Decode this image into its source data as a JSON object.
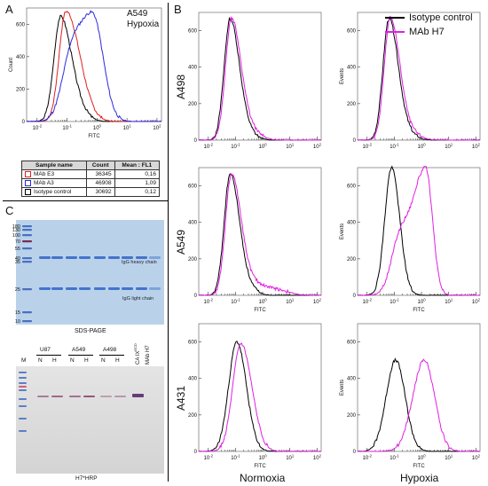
{
  "panel_a": {
    "letter": "A",
    "title_line1": "A549",
    "title_line2": "Hypoxia",
    "ylabel": "Count",
    "xlabel": "FITC",
    "yticks": [
      "0",
      "200",
      "400",
      "600"
    ],
    "table": {
      "headers": [
        "Sample name",
        "Count",
        "Mean : FL1"
      ],
      "rows": [
        {
          "name": "MAb E3",
          "count": "36345",
          "mean": "0,16",
          "color": "#e02020"
        },
        {
          "name": "MAb A3",
          "count": "46908",
          "mean": "1,09",
          "color": "#2a2adf"
        },
        {
          "name": "Isotype control",
          "count": "30692",
          "mean": "0,12",
          "color": "#000000"
        }
      ]
    }
  },
  "panel_b": {
    "letter": "B",
    "legend": [
      {
        "label": "Isotype control",
        "color": "#000000"
      },
      {
        "label": "MAb H7",
        "color": "#e020e0"
      }
    ],
    "row_labels": [
      "A498",
      "A549",
      "A431"
    ],
    "col_labels": [
      "Normoxia",
      "Hypoxia"
    ],
    "ylabel_right": "Events",
    "xlabel": "FITC",
    "yticks": [
      "0",
      "200",
      "400",
      "600"
    ]
  },
  "axis": {
    "xticks": [
      "10^-2",
      "10^-1",
      "10^0",
      "10^1",
      "10^2"
    ]
  },
  "panel_c": {
    "letter": "C",
    "sds_mw_markers": [
      "180",
      "130",
      "100",
      "70",
      "55",
      "40",
      "35",
      "25",
      "15",
      "10"
    ],
    "heavy_chain_label": "IgG heavy chain",
    "light_chain_label": "IgG light chain",
    "sds_caption": "SDS-PAGE",
    "wb_lane_M": "M",
    "wb_groups": [
      "U87",
      "A549",
      "A498"
    ],
    "wb_sublanes": [
      "N",
      "H"
    ],
    "wb_ca9_label": "CA IX",
    "wb_ca9_sup": "ECD",
    "wb_mab_label": "MAb H7",
    "wb_caption": "H7*HRP"
  },
  "colors": {
    "red": "#e02020",
    "blue": "#2a2adf",
    "magenta": "#e020e0",
    "gel_blue": "#3a7ad0",
    "gel_bg": "#b9d2ea"
  }
}
